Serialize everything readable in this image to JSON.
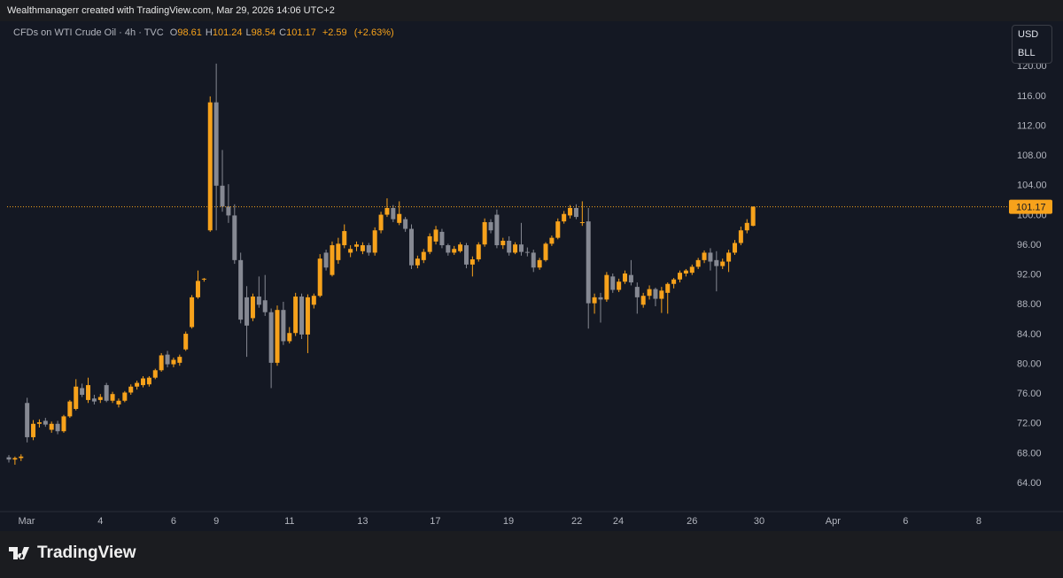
{
  "header": {
    "credit": "Wealthmanagerr created with TradingView.com, Mar 29, 2026 14:06 UTC+2"
  },
  "legend": {
    "symbol": "CFDs on WTI Crude Oil · 4h · TVC",
    "ohlc": [
      {
        "label": "O",
        "value": 98.61
      },
      {
        "label": "H",
        "value": 101.24
      },
      {
        "label": "L",
        "value": 98.54
      },
      {
        "label": "C",
        "value": 101.17
      }
    ],
    "change": {
      "value": 2.59,
      "label": "+2.59"
    },
    "change_pct": {
      "value": 2.63,
      "label": "(+2.63%)"
    }
  },
  "scale_box": {
    "currency": "USD",
    "unit": "BLL"
  },
  "footer": {
    "brand": "TradingView"
  },
  "chart_data": {
    "type": "candlestick",
    "up_color": "#f7a21b",
    "down_color": "#868993",
    "last_price": 101.17,
    "ylim": [
      60.2,
      126.1
    ],
    "yticks": [
      {
        "value": 64,
        "label": "64.00"
      },
      {
        "value": 68,
        "label": "68.00"
      },
      {
        "value": 72,
        "label": "72.00"
      },
      {
        "value": 76,
        "label": "76.00"
      },
      {
        "value": 80,
        "label": "80.00"
      },
      {
        "value": 84,
        "label": "84.00"
      },
      {
        "value": 88,
        "label": "88.00"
      },
      {
        "value": 92,
        "label": "92.00"
      },
      {
        "value": 96,
        "label": "96.00"
      },
      {
        "value": 100,
        "label": "100.00"
      },
      {
        "value": 104,
        "label": "104.00"
      },
      {
        "value": 108,
        "label": "108.00"
      },
      {
        "value": 112,
        "label": "112.00"
      },
      {
        "value": 116,
        "label": "116.00"
      },
      {
        "value": 120,
        "label": "120.00"
      }
    ],
    "xlim": [
      -0.29,
      163.8
    ],
    "xticks": [
      {
        "value": 2.9,
        "label": "Mar"
      },
      {
        "value": 15,
        "label": "4"
      },
      {
        "value": 27,
        "label": "6"
      },
      {
        "value": 34,
        "label": "9"
      },
      {
        "value": 46,
        "label": "11"
      },
      {
        "value": 58,
        "label": "13"
      },
      {
        "value": 69.9,
        "label": "17"
      },
      {
        "value": 81.9,
        "label": "19"
      },
      {
        "value": 93.1,
        "label": "22"
      },
      {
        "value": 99.9,
        "label": "24"
      },
      {
        "value": 112,
        "label": "26"
      },
      {
        "value": 123,
        "label": "30"
      },
      {
        "value": 135.1,
        "label": "Apr"
      },
      {
        "value": 147,
        "label": "6"
      },
      {
        "value": 159,
        "label": "8"
      }
    ],
    "ohlc": [
      [
        67.5,
        67.8,
        66.8,
        67.2
      ],
      [
        67.2,
        67.6,
        66.5,
        67.4
      ],
      [
        67.4,
        67.9,
        67.0,
        67.6
      ],
      [
        74.8,
        75.5,
        69.5,
        70.2
      ],
      [
        70.2,
        72.5,
        69.8,
        72.0
      ],
      [
        72.0,
        72.6,
        71.5,
        72.2
      ],
      [
        72.4,
        72.8,
        71.6,
        71.9
      ],
      [
        71.2,
        72.3,
        70.8,
        72.0
      ],
      [
        72.0,
        72.4,
        70.6,
        71.0
      ],
      [
        71.0,
        73.2,
        70.8,
        73.0
      ],
      [
        73.0,
        75.2,
        72.8,
        75.0
      ],
      [
        74.0,
        78.0,
        73.8,
        77.0
      ],
      [
        76.8,
        77.4,
        75.6,
        75.9
      ],
      [
        75.2,
        78.2,
        74.8,
        77.2
      ],
      [
        75.4,
        75.9,
        74.6,
        75.0
      ],
      [
        75.2,
        76.0,
        74.8,
        75.6
      ],
      [
        77.2,
        77.5,
        74.9,
        75.1
      ],
      [
        75.1,
        76.3,
        74.8,
        76.0
      ],
      [
        74.6,
        75.4,
        74.2,
        75.1
      ],
      [
        75.1,
        76.4,
        74.9,
        76.2
      ],
      [
        76.2,
        77.3,
        75.9,
        77.0
      ],
      [
        77.0,
        77.8,
        76.6,
        77.5
      ],
      [
        77.2,
        78.4,
        76.9,
        78.1
      ],
      [
        77.3,
        78.4,
        77.0,
        78.2
      ],
      [
        78.2,
        79.4,
        78.0,
        79.2
      ],
      [
        79.2,
        81.5,
        79.0,
        81.2
      ],
      [
        81.3,
        81.8,
        79.6,
        80.0
      ],
      [
        80.0,
        80.9,
        79.6,
        80.6
      ],
      [
        80.2,
        81.3,
        79.8,
        81.0
      ],
      [
        82.0,
        84.4,
        81.8,
        84.1
      ],
      [
        85.0,
        89.3,
        84.8,
        89.0
      ],
      [
        89.0,
        92.6,
        88.8,
        91.2
      ],
      [
        91.4,
        91.6,
        91.1,
        91.5
      ],
      [
        98.0,
        116.0,
        97.8,
        115.2
      ],
      [
        115.2,
        120.4,
        98.0,
        104.0
      ],
      [
        104.0,
        108.8,
        100.5,
        101.2
      ],
      [
        101.2,
        104.2,
        99.0,
        100.0
      ],
      [
        100.0,
        101.5,
        93.5,
        94.0
      ],
      [
        94.0,
        95.0,
        85.5,
        86.0
      ],
      [
        89.0,
        90.5,
        81.0,
        85.2
      ],
      [
        86.2,
        89.5,
        85.8,
        89.1
      ],
      [
        89.1,
        91.8,
        87.6,
        88.0
      ],
      [
        88.6,
        92.0,
        86.5,
        87.0
      ],
      [
        87.0,
        87.5,
        76.8,
        80.2
      ],
      [
        80.2,
        87.9,
        79.8,
        87.3
      ],
      [
        87.3,
        88.4,
        82.6,
        83.1
      ],
      [
        83.1,
        85.0,
        82.8,
        84.2
      ],
      [
        84.2,
        89.6,
        83.8,
        89.1
      ],
      [
        89.1,
        89.5,
        83.4,
        84.0
      ],
      [
        84.0,
        89.4,
        81.5,
        89.0
      ],
      [
        88.0,
        89.5,
        87.5,
        89.2
      ],
      [
        89.2,
        94.8,
        89.0,
        94.2
      ],
      [
        95.0,
        95.4,
        92.6,
        93.0
      ],
      [
        92.0,
        96.5,
        91.8,
        96.0
      ],
      [
        94.0,
        97.0,
        93.5,
        96.2
      ],
      [
        96.0,
        98.8,
        95.6,
        97.9
      ],
      [
        95.0,
        96.0,
        94.4,
        95.5
      ],
      [
        95.8,
        96.5,
        95.2,
        96.1
      ],
      [
        95.2,
        96.4,
        94.8,
        96.0
      ],
      [
        96.0,
        96.3,
        94.6,
        95.0
      ],
      [
        95.0,
        98.4,
        94.6,
        98.0
      ],
      [
        98.0,
        100.5,
        97.6,
        100.1
      ],
      [
        100.1,
        102.3,
        99.8,
        101.0
      ],
      [
        101.0,
        101.4,
        99.1,
        99.5
      ],
      [
        99.0,
        101.9,
        98.7,
        100.2
      ],
      [
        99.5,
        99.8,
        97.8,
        98.2
      ],
      [
        98.2,
        98.8,
        92.8,
        93.3
      ],
      [
        93.3,
        94.6,
        92.9,
        94.2
      ],
      [
        94.0,
        95.5,
        93.6,
        95.1
      ],
      [
        95.1,
        97.6,
        94.8,
        97.2
      ],
      [
        96.5,
        98.6,
        96.1,
        98.1
      ],
      [
        97.8,
        98.2,
        95.6,
        96.0
      ],
      [
        96.0,
        96.2,
        94.6,
        95.0
      ],
      [
        95.0,
        95.9,
        94.7,
        95.5
      ],
      [
        95.2,
        96.4,
        95.0,
        96.1
      ],
      [
        96.0,
        96.3,
        92.9,
        93.4
      ],
      [
        93.4,
        94.5,
        91.8,
        94.1
      ],
      [
        94.1,
        96.4,
        93.8,
        96.1
      ],
      [
        96.1,
        99.6,
        95.8,
        99.1
      ],
      [
        99.1,
        99.5,
        97.6,
        98.0
      ],
      [
        100.1,
        100.8,
        95.6,
        96.0
      ],
      [
        96.0,
        97.0,
        95.5,
        96.6
      ],
      [
        96.6,
        97.2,
        94.6,
        95.0
      ],
      [
        95.0,
        96.4,
        94.8,
        96.1
      ],
      [
        96.1,
        99.0,
        94.6,
        95.1
      ],
      [
        95.1,
        95.7,
        94.5,
        95.0
      ],
      [
        95.0,
        95.4,
        92.4,
        93.0
      ],
      [
        93.0,
        94.3,
        92.7,
        94.0
      ],
      [
        94.0,
        96.4,
        93.8,
        96.2
      ],
      [
        96.2,
        97.3,
        95.9,
        97.0
      ],
      [
        97.0,
        99.6,
        96.8,
        99.2
      ],
      [
        99.2,
        100.6,
        98.9,
        100.2
      ],
      [
        100.0,
        101.4,
        99.6,
        101.0
      ],
      [
        101.0,
        101.5,
        99.5,
        99.8
      ],
      [
        99.0,
        101.9,
        98.6,
        99.1
      ],
      [
        99.2,
        101.0,
        84.8,
        88.2
      ],
      [
        88.2,
        89.5,
        86.8,
        89.0
      ],
      [
        89.0,
        89.6,
        85.6,
        88.7
      ],
      [
        88.7,
        92.4,
        88.4,
        92.0
      ],
      [
        91.8,
        92.2,
        89.6,
        90.0
      ],
      [
        90.0,
        91.5,
        89.7,
        91.1
      ],
      [
        91.1,
        92.6,
        90.8,
        92.2
      ],
      [
        92.0,
        94.0,
        90.6,
        91.0
      ],
      [
        90.4,
        91.0,
        86.8,
        89.0
      ],
      [
        88.0,
        89.6,
        87.6,
        89.2
      ],
      [
        89.2,
        90.6,
        88.7,
        90.1
      ],
      [
        90.1,
        90.3,
        87.8,
        88.8
      ],
      [
        88.8,
        90.4,
        86.9,
        89.9
      ],
      [
        89.6,
        91.0,
        86.8,
        90.8
      ],
      [
        90.8,
        91.6,
        90.2,
        91.4
      ],
      [
        91.4,
        92.6,
        91.0,
        92.3
      ],
      [
        92.2,
        92.8,
        91.8,
        92.6
      ],
      [
        92.3,
        93.4,
        92.0,
        93.1
      ],
      [
        93.1,
        94.3,
        92.8,
        94.0
      ],
      [
        94.0,
        95.3,
        93.6,
        95.0
      ],
      [
        95.0,
        95.6,
        92.6,
        93.8
      ],
      [
        94.0,
        95.2,
        89.8,
        93.2
      ],
      [
        93.2,
        94.2,
        92.8,
        93.8
      ],
      [
        93.8,
        95.4,
        92.4,
        95.0
      ],
      [
        95.0,
        96.7,
        94.7,
        96.3
      ],
      [
        96.3,
        98.5,
        96.0,
        98.0
      ],
      [
        98.0,
        99.5,
        97.6,
        99.0
      ],
      [
        98.61,
        101.24,
        98.54,
        101.17
      ]
    ]
  }
}
